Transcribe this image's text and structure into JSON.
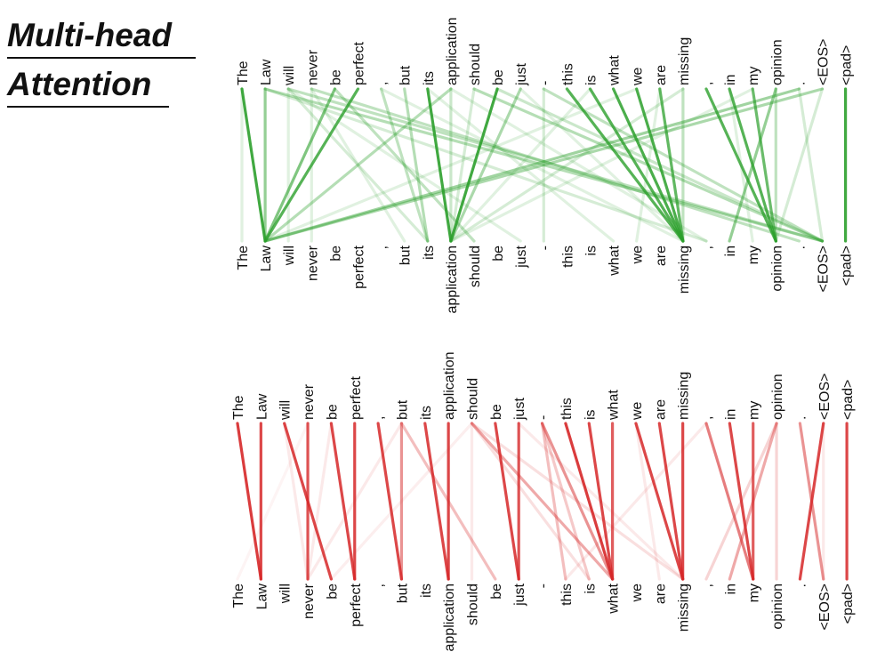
{
  "title": {
    "line1": "Multi-head",
    "line2": "Attention"
  },
  "tokens": [
    "The",
    "Law",
    "will",
    "never",
    "be",
    "perfect",
    ",",
    "but",
    "its",
    "application",
    "should",
    "be",
    "just",
    "-",
    "this",
    "is",
    "what",
    "we",
    "are",
    "missing",
    ",",
    "in",
    "my",
    "opinion",
    ".",
    "<EOS>",
    "<pad>"
  ],
  "panels": [
    {
      "name": "green-head",
      "color": "#2ca02c",
      "edges": [
        [
          0,
          1,
          0.9
        ],
        [
          1,
          1,
          0.5
        ],
        [
          5,
          1,
          0.8
        ],
        [
          4,
          1,
          0.6
        ],
        [
          8,
          9,
          0.9
        ],
        [
          11,
          9,
          0.9
        ],
        [
          12,
          9,
          0.4
        ],
        [
          14,
          19,
          0.8
        ],
        [
          15,
          19,
          0.8
        ],
        [
          16,
          19,
          0.85
        ],
        [
          17,
          19,
          0.85
        ],
        [
          18,
          19,
          0.75
        ],
        [
          19,
          19,
          0.3
        ],
        [
          20,
          23,
          0.8
        ],
        [
          21,
          23,
          0.8
        ],
        [
          22,
          23,
          0.7
        ],
        [
          23,
          21,
          0.5
        ],
        [
          23,
          23,
          0.3
        ],
        [
          26,
          26,
          0.9
        ],
        [
          24,
          1,
          0.45
        ],
        [
          25,
          1,
          0.4
        ],
        [
          1,
          25,
          0.35
        ],
        [
          2,
          25,
          0.3
        ],
        [
          9,
          1,
          0.35
        ],
        [
          10,
          25,
          0.35
        ],
        [
          3,
          24,
          0.3
        ],
        [
          6,
          8,
          0.3
        ],
        [
          7,
          8,
          0.35
        ],
        [
          9,
          9,
          0.25
        ],
        [
          13,
          25,
          0.3
        ],
        [
          4,
          10,
          0.3
        ],
        [
          2,
          8,
          0.2
        ],
        [
          25,
          23,
          0.2
        ],
        [
          0,
          0,
          0.15
        ],
        [
          2,
          2,
          0.15
        ],
        [
          3,
          3,
          0.15
        ],
        [
          13,
          13,
          0.2
        ],
        [
          9,
          20,
          0.15
        ],
        [
          19,
          9,
          0.2
        ],
        [
          24,
          25,
          0.2
        ],
        [
          1,
          20,
          0.2
        ],
        [
          6,
          19,
          0.15
        ],
        [
          12,
          19,
          0.15
        ],
        [
          15,
          9,
          0.15
        ],
        [
          3,
          7,
          0.15
        ],
        [
          2,
          12,
          0.15
        ],
        [
          11,
          25,
          0.25
        ],
        [
          10,
          9,
          0.2
        ],
        [
          8,
          16,
          0.15
        ],
        [
          17,
          1,
          0.15
        ],
        [
          22,
          9,
          0.15
        ],
        [
          21,
          22,
          0.15
        ],
        [
          18,
          17,
          0.15
        ]
      ]
    },
    {
      "name": "red-head",
      "color": "#d62728",
      "edges": [
        [
          0,
          1,
          0.9
        ],
        [
          1,
          1,
          0.85
        ],
        [
          2,
          4,
          0.85
        ],
        [
          3,
          3,
          0.8
        ],
        [
          4,
          5,
          0.85
        ],
        [
          5,
          5,
          0.85
        ],
        [
          6,
          7,
          0.85
        ],
        [
          7,
          7,
          0.5
        ],
        [
          8,
          9,
          0.85
        ],
        [
          9,
          9,
          0.85
        ],
        [
          11,
          12,
          0.85
        ],
        [
          12,
          12,
          0.8
        ],
        [
          7,
          11,
          0.3
        ],
        [
          10,
          16,
          0.4
        ],
        [
          10,
          15,
          0.15
        ],
        [
          10,
          19,
          0.15
        ],
        [
          10,
          10,
          0.1
        ],
        [
          13,
          16,
          0.5
        ],
        [
          13,
          14,
          0.3
        ],
        [
          13,
          15,
          0.25
        ],
        [
          14,
          16,
          0.9
        ],
        [
          15,
          16,
          0.85
        ],
        [
          16,
          16,
          0.75
        ],
        [
          17,
          19,
          0.85
        ],
        [
          18,
          19,
          0.85
        ],
        [
          19,
          19,
          0.85
        ],
        [
          20,
          22,
          0.6
        ],
        [
          21,
          22,
          0.85
        ],
        [
          22,
          22,
          0.75
        ],
        [
          23,
          21,
          0.4
        ],
        [
          23,
          20,
          0.2
        ],
        [
          23,
          23,
          0.2
        ],
        [
          24,
          25,
          0.5
        ],
        [
          25,
          24,
          0.85
        ],
        [
          26,
          26,
          0.85
        ],
        [
          2,
          3,
          0.1
        ],
        [
          3,
          0,
          0.05
        ],
        [
          4,
          3,
          0.1
        ],
        [
          7,
          3,
          0.1
        ],
        [
          10,
          4,
          0.08
        ],
        [
          12,
          19,
          0.1
        ],
        [
          20,
          14,
          0.1
        ],
        [
          17,
          18,
          0.1
        ],
        [
          25,
          25,
          0.1
        ]
      ]
    }
  ]
}
